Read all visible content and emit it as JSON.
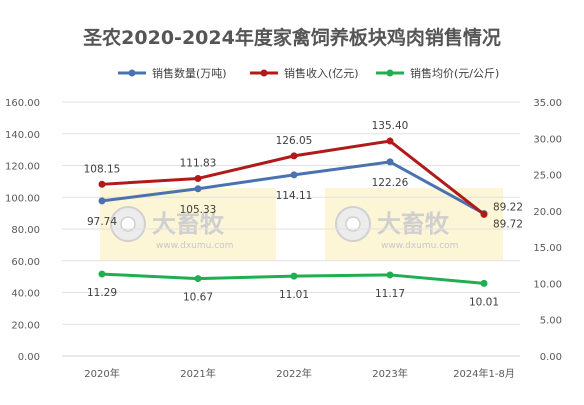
{
  "chart_data": {
    "type": "line",
    "title": "圣农2020-2024年度家禽饲养板块鸡肉销售情况",
    "categories": [
      "2020年",
      "2021年",
      "2022年",
      "2023年",
      "2024年1-8月"
    ],
    "series": [
      {
        "name": "销售数量(万吨)",
        "axis": "left",
        "color": "#4a72b0",
        "values": [
          97.74,
          105.33,
          114.11,
          122.26,
          89.72
        ],
        "labels": [
          "97.74",
          "105.33",
          "114.11",
          "122.26",
          "89.72"
        ]
      },
      {
        "name": "销售收入(亿元)",
        "axis": "left",
        "color": "#b01a1a",
        "values": [
          108.15,
          111.83,
          126.05,
          135.4,
          89.22
        ],
        "labels": [
          "108.15",
          "111.83",
          "126.05",
          "135.40",
          "89.22"
        ]
      },
      {
        "name": "销售均价(元/公斤)",
        "axis": "right",
        "color": "#1fae50",
        "values": [
          11.29,
          10.67,
          11.01,
          11.17,
          10.01
        ],
        "labels": [
          "11.29",
          "10.67",
          "11.01",
          "11.17",
          "10.01"
        ]
      }
    ],
    "y_left": {
      "min": 0,
      "max": 160,
      "ticks": [
        "0.00",
        "20.00",
        "40.00",
        "60.00",
        "80.00",
        "100.00",
        "120.00",
        "140.00",
        "160.00"
      ]
    },
    "y_right": {
      "min": 0,
      "max": 35,
      "ticks": [
        "0.00",
        "5.00",
        "10.00",
        "15.00",
        "20.00",
        "25.00",
        "30.00",
        "35.00"
      ]
    },
    "grid": true,
    "legend": "top",
    "watermark": {
      "brand": "大畜牧",
      "url": "www.dxumu.com"
    }
  }
}
